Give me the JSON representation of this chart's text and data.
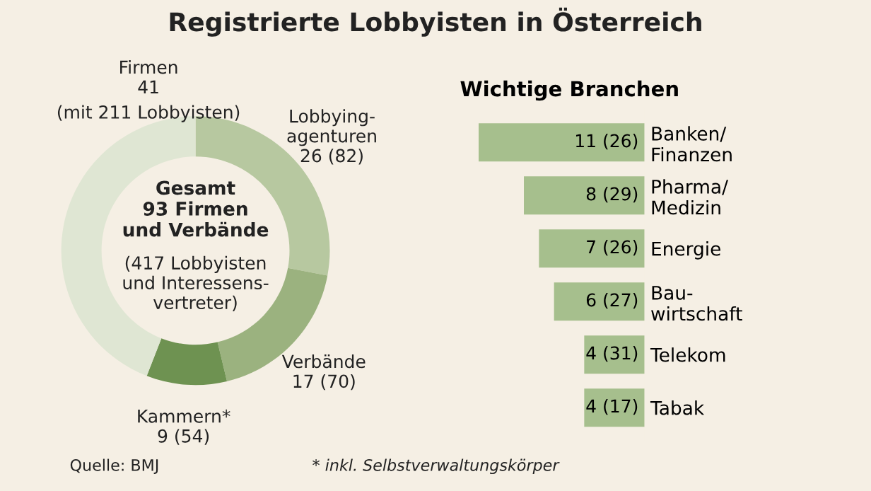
{
  "chart_data": [
    {
      "type": "donut",
      "title": "Registrierte Lobbyisten in Österreich",
      "categories": [
        "Lobbying-\nagenturen",
        "Verbände",
        "Kammern*",
        "Firmen"
      ],
      "values": [
        26,
        17,
        9,
        41
      ],
      "value_labels": [
        "26 (82)",
        "17 (70)",
        "9 (54)",
        "41"
      ],
      "colors": [
        "#b7c8a0",
        "#9bb27f",
        "#6e9251",
        "#dfe6d3"
      ],
      "annotations": [
        "Gesamt\n93 Firmen\nund Verbände",
        "(417 Lobbyisten\nund Interessens-\nvertreter)",
        "(mit 211 Lobbyisten)",
        "Quelle: BMJ",
        "* inkl. Selbstverwaltungskörper"
      ]
    },
    {
      "type": "bar",
      "orientation": "horizontal",
      "title": "Wichtige Branchen",
      "categories": [
        "Banken/\nFinanzen",
        "Pharma/\nMedizin",
        "Energie",
        "Bau-\nwirtschaft",
        "Telekom",
        "Tabak"
      ],
      "values": [
        11,
        8,
        7,
        6,
        4,
        4
      ],
      "value_labels": [
        "11 (26)",
        "8 (29)",
        "7 (26)",
        "6 (27)",
        "4 (31)",
        "4 (17)"
      ],
      "color": "#a6bf8d"
    }
  ]
}
